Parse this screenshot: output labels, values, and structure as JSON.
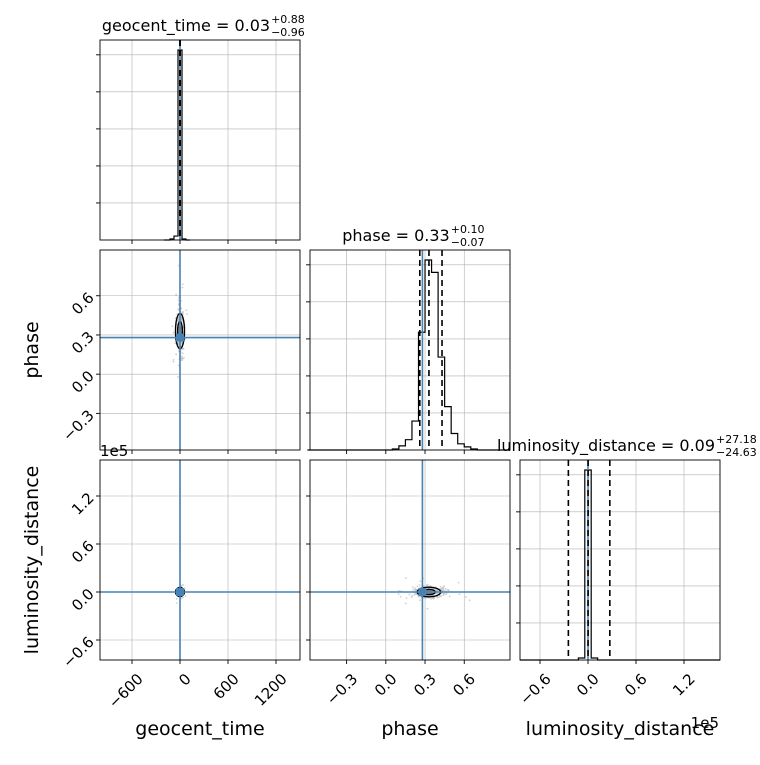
{
  "chart_data": {
    "type": "corner",
    "parameters": [
      "geocent_time",
      "phase",
      "luminosity_distance"
    ],
    "truth": {
      "geocent_time": 0,
      "phase": 0.28,
      "luminosity_distance": 0
    },
    "titles": [
      {
        "param": "geocent_time",
        "text": "geocent_time = 0.03",
        "sup": "+0.88",
        "sub": "−0.96"
      },
      {
        "param": "phase",
        "text": "phase = 0.33",
        "sup": "+0.10",
        "sub": "−0.07"
      },
      {
        "param": "luminosity_distance",
        "text": "luminosity_distance = 0.09",
        "sup": "+27.18",
        "sub": "−24.63"
      }
    ],
    "axes": {
      "geocent_time": {
        "range": [
          -1000,
          1500
        ],
        "ticks": [
          -600,
          0,
          600,
          1200
        ],
        "tick_labels": [
          "−600",
          "0",
          "600",
          "1200"
        ],
        "label": "geocent_time",
        "offset": ""
      },
      "phase": {
        "range": [
          -0.58,
          0.95
        ],
        "ticks": [
          -0.3,
          0.0,
          0.3,
          0.6
        ],
        "tick_labels": [
          "−0.3",
          "0.0",
          "0.3",
          "0.6"
        ],
        "label": "phase",
        "offset": ""
      },
      "luminosity_distance": {
        "range": [
          -85000,
          165000
        ],
        "ticks": [
          -60000,
          0,
          60000,
          120000
        ],
        "tick_labels": [
          "−0.6",
          "0.0",
          "0.6",
          "1.2"
        ],
        "label": "luminosity_distance",
        "offset": "1e5"
      }
    },
    "histograms": {
      "geocent_time": {
        "bin_edges": [
          -200,
          -125,
          -75,
          -25,
          25,
          75,
          125
        ],
        "values": [
          0,
          0.005,
          0.02,
          0.97,
          0.005,
          0
        ],
        "quantiles": [
          -0.93,
          0.03,
          0.91
        ]
      },
      "phase": {
        "bin_edges": [
          -0.6,
          0.05,
          0.1,
          0.15,
          0.2,
          0.25,
          0.3,
          0.35,
          0.4,
          0.45,
          0.5,
          0.55,
          0.6,
          0.65,
          0.7,
          0.75,
          0.8,
          0.95
        ],
        "values": [
          0,
          0.005,
          0.02,
          0.05,
          0.14,
          0.57,
          0.92,
          0.86,
          0.45,
          0.21,
          0.08,
          0.03,
          0.015,
          0.005,
          0,
          0,
          0
        ],
        "quantiles": [
          0.26,
          0.33,
          0.43
        ]
      },
      "luminosity_distance": {
        "bin_edges": [
          -85000,
          -12000,
          -4000,
          4000,
          12000,
          165000
        ],
        "values": [
          0,
          0.01,
          0.96,
          0.01,
          0
        ],
        "quantiles": [
          -24540,
          90,
          27270
        ]
      }
    },
    "scatter_2d": [
      {
        "x": "geocent_time",
        "y": "phase",
        "center": [
          0,
          0.33
        ],
        "spread": [
          20,
          0.09
        ]
      },
      {
        "x": "geocent_time",
        "y": "luminosity_distance",
        "center": [
          0,
          0
        ],
        "spread": [
          15,
          2500
        ]
      },
      {
        "x": "phase",
        "y": "luminosity_distance",
        "center": [
          0.33,
          0
        ],
        "spread": [
          0.06,
          4000
        ]
      }
    ],
    "grid": true,
    "colors": {
      "hist": "#000000",
      "truth": "#4682b4",
      "points": "#bbbbbb",
      "grid": "#b0b0b0",
      "contour": "#000000"
    }
  }
}
